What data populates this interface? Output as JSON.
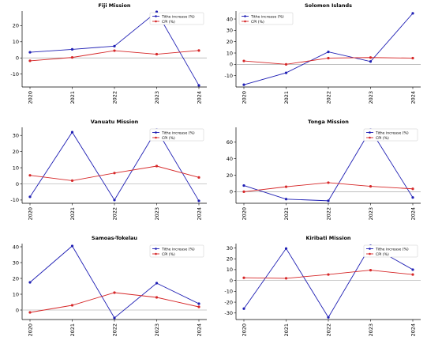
{
  "legend_labels": {
    "tithe": "Tithe increase (%)",
    "cpi": "CPI (%)"
  },
  "colors": {
    "tithe": "#1f1fb4",
    "cpi": "#d62728",
    "zero_line": "#999999",
    "axes": "#000000"
  },
  "chart_data": [
    {
      "type": "line",
      "title": "Fiji Mission",
      "x": [
        "2020",
        "2021",
        "2022",
        "2023",
        "2024"
      ],
      "series": [
        {
          "name": "Tithe increase (%)",
          "values": [
            3.5,
            5.3,
            7.3,
            28.5,
            -17.0
          ]
        },
        {
          "name": "CPI (%)",
          "values": [
            -1.8,
            0.3,
            4.5,
            2.3,
            4.6
          ]
        }
      ],
      "yticks": [
        -10,
        0,
        10,
        20
      ],
      "ylim": [
        -18,
        29
      ],
      "legend": "top-right"
    },
    {
      "type": "line",
      "title": "Solomon Islands",
      "x": [
        "2020",
        "2021",
        "2022",
        "2023",
        "2024"
      ],
      "series": [
        {
          "name": "Tithe increase (%)",
          "values": [
            -18.0,
            -7.5,
            11.0,
            2.5,
            45.0
          ]
        },
        {
          "name": "CPI (%)",
          "values": [
            3.0,
            0.0,
            5.5,
            6.0,
            5.5
          ]
        }
      ],
      "yticks": [
        -10,
        0,
        10,
        20,
        30,
        40
      ],
      "ylim": [
        -20,
        47
      ],
      "legend": "top-left"
    },
    {
      "type": "line",
      "title": "Vanuatu Mission",
      "x": [
        "2020",
        "2021",
        "2022",
        "2023",
        "2024"
      ],
      "series": [
        {
          "name": "Tithe increase (%)",
          "values": [
            -8.0,
            32.0,
            -10.0,
            33.5,
            -10.5
          ]
        },
        {
          "name": "CPI (%)",
          "values": [
            5.3,
            2.0,
            6.7,
            11.0,
            4.0
          ]
        }
      ],
      "yticks": [
        -10,
        0,
        10,
        20,
        30
      ],
      "ylim": [
        -12,
        35
      ],
      "legend": "top-right"
    },
    {
      "type": "line",
      "title": "Tonga Mission",
      "x": [
        "2020",
        "2021",
        "2022",
        "2023",
        "2024"
      ],
      "series": [
        {
          "name": "Tithe increase (%)",
          "values": [
            7.5,
            -9.0,
            -11.0,
            75.0,
            -7.0
          ]
        },
        {
          "name": "CPI (%)",
          "values": [
            0.0,
            6.0,
            11.0,
            6.5,
            3.5
          ]
        }
      ],
      "yticks": [
        0,
        20,
        40,
        60
      ],
      "ylim": [
        -14,
        78
      ],
      "legend": "top-right"
    },
    {
      "type": "line",
      "title": "Samoas-Tokelau",
      "x": [
        "2020",
        "2021",
        "2022",
        "2023",
        "2024"
      ],
      "series": [
        {
          "name": "Tithe increase (%)",
          "values": [
            17.5,
            40.5,
            -5.0,
            17.0,
            4.0
          ]
        },
        {
          "name": "CPI (%)",
          "values": [
            -1.5,
            3.0,
            11.0,
            8.0,
            2.0
          ]
        }
      ],
      "yticks": [
        0,
        10,
        20,
        30,
        40
      ],
      "ylim": [
        -6,
        42
      ],
      "legend": "top-right"
    },
    {
      "type": "line",
      "title": "Kiribati Mission",
      "x": [
        "2020",
        "2021",
        "2022",
        "2023",
        "2024"
      ],
      "series": [
        {
          "name": "Tithe increase (%)",
          "values": [
            -26.0,
            29.5,
            -34.0,
            32.0,
            10.0
          ]
        },
        {
          "name": "CPI (%)",
          "values": [
            2.5,
            2.0,
            5.5,
            9.5,
            5.5
          ]
        }
      ],
      "yticks": [
        -30,
        -20,
        -10,
        0,
        10,
        20,
        30
      ],
      "ylim": [
        -36,
        34
      ],
      "legend": "top-right"
    }
  ]
}
